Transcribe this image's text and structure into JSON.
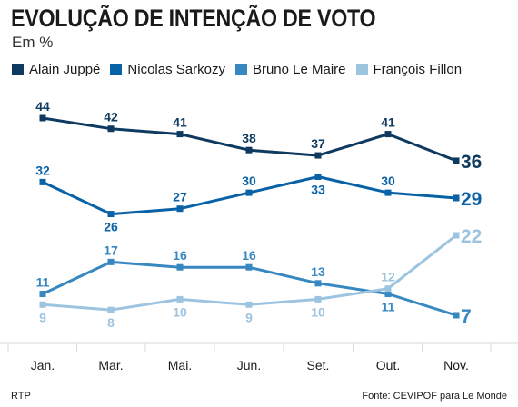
{
  "source": {
    "left": "RTP",
    "right": "Fonte: CEVIPOF para Le Monde"
  },
  "chart_data": {
    "type": "line",
    "title": "EVOLUÇÃO DE INTENÇÃO DE VOTO",
    "subtitle": "Em %",
    "xlabel": "",
    "ylabel": "",
    "categories": [
      "Jan.",
      "Mar.",
      "Mai.",
      "Jun.",
      "Set.",
      "Out.",
      "Nov."
    ],
    "ylim": [
      5,
      46
    ],
    "grid": false,
    "legend_position": "top",
    "series": [
      {
        "name": "Alain Juppé",
        "color": "#0e3a5f",
        "values": [
          44,
          42,
          41,
          38,
          37,
          41,
          36
        ],
        "labels": [
          "44",
          "42",
          "41",
          "38",
          "37",
          "41",
          "36"
        ]
      },
      {
        "name": "Nicolas Sarkozy",
        "color": "#0a62a6",
        "values": [
          32,
          26,
          27,
          30,
          33,
          30,
          29
        ],
        "labels": [
          "32",
          "26",
          "27",
          "30",
          "33",
          "30",
          "29"
        ]
      },
      {
        "name": "Bruno Le Maire",
        "color": "#3787c1",
        "values": [
          11,
          17,
          16,
          16,
          13,
          11,
          7
        ],
        "labels": [
          "11",
          "17",
          "16",
          "16",
          "13",
          "11",
          "7"
        ]
      },
      {
        "name": "François Fillon",
        "color": "#9cc4e1",
        "values": [
          9,
          8,
          10,
          9,
          10,
          12,
          22
        ],
        "labels": [
          "9",
          "8",
          "10",
          "9",
          "10",
          "12",
          "22"
        ]
      }
    ]
  }
}
